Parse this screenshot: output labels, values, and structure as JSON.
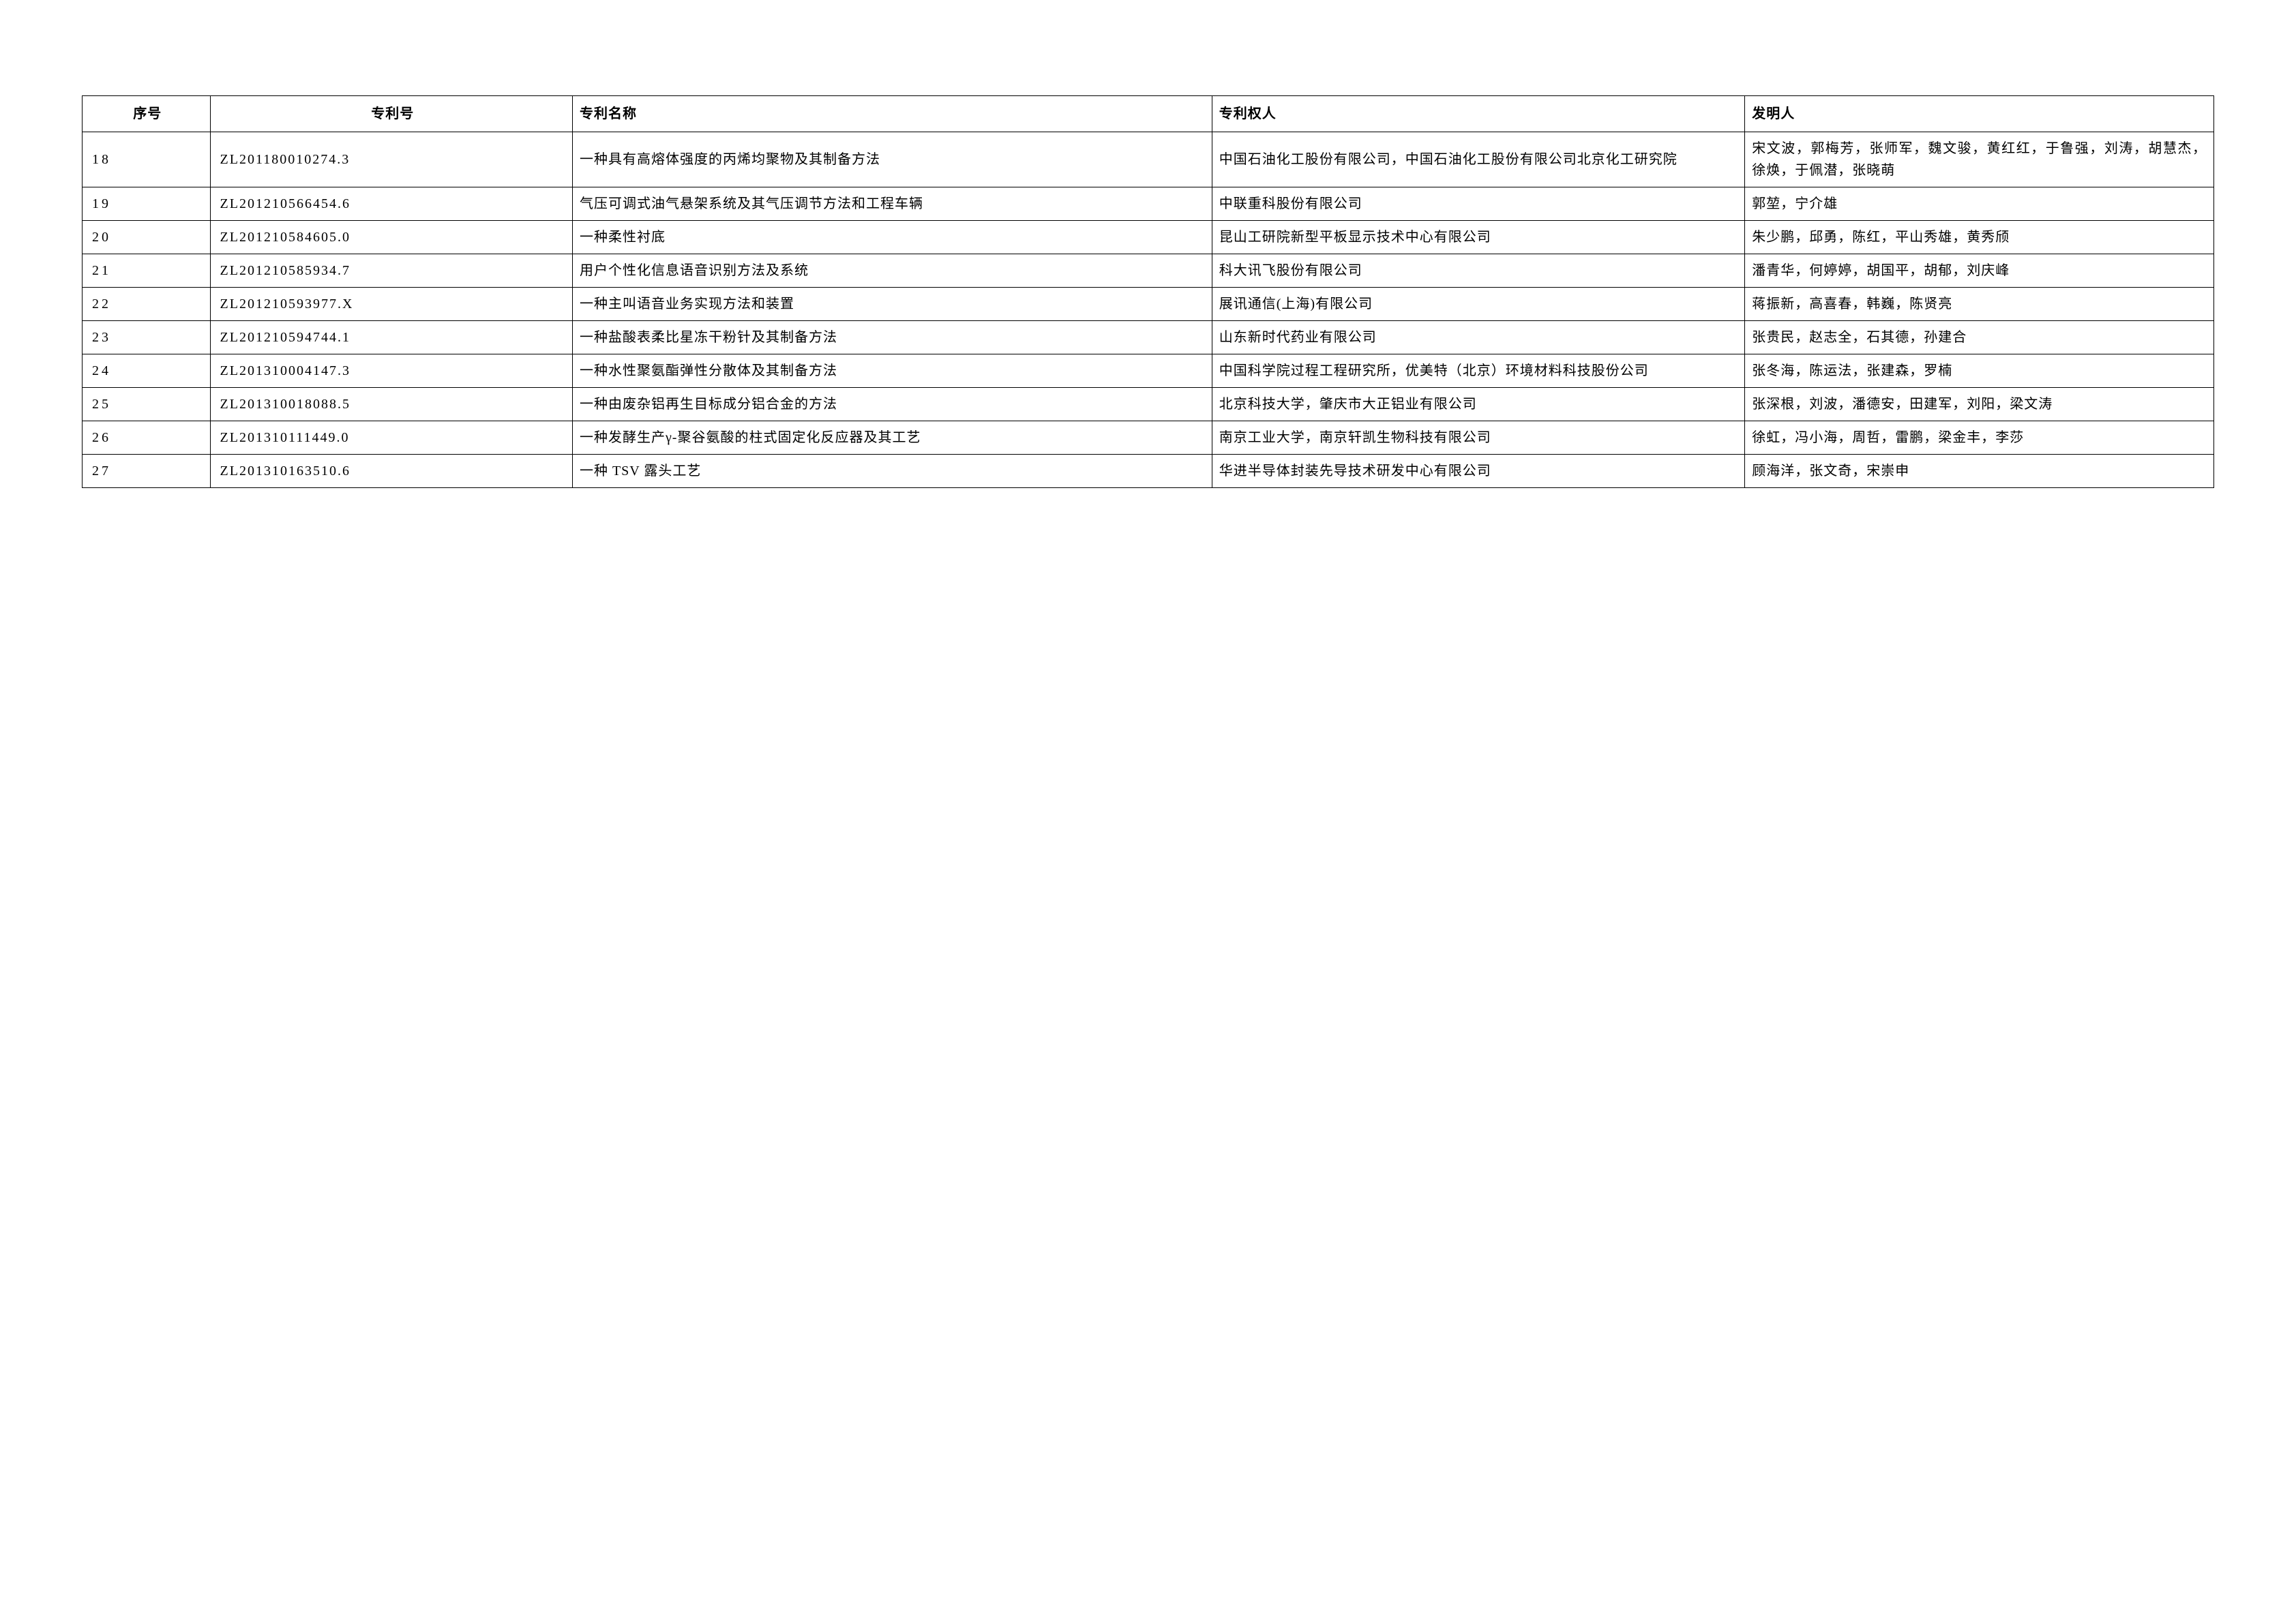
{
  "table": {
    "headers": {
      "seq": "序号",
      "patentNo": "专利号",
      "patentName": "专利名称",
      "owner": "专利权人",
      "inventor": "发明人"
    },
    "columnWidths": {
      "seq": "6%",
      "patentNo": "17%",
      "patentName": "30%",
      "owner": "25%",
      "inventor": "22%"
    },
    "borderColor": "#000000",
    "backgroundColor": "#ffffff",
    "fontSize": 20,
    "rows": [
      {
        "seq": "18",
        "patentNo": "ZL201180010274.3",
        "patentName": "一种具有高熔体强度的丙烯均聚物及其制备方法",
        "owner": "中国石油化工股份有限公司，中国石油化工股份有限公司北京化工研究院",
        "inventor": "宋文波，郭梅芳，张师军，魏文骏，黄红红，于鲁强，刘涛，胡慧杰，徐焕，于佩潜，张晓萌"
      },
      {
        "seq": "19",
        "patentNo": "ZL201210566454.6",
        "patentName": "气压可调式油气悬架系统及其气压调节方法和工程车辆",
        "owner": "中联重科股份有限公司",
        "inventor": "郭堃，宁介雄"
      },
      {
        "seq": "20",
        "patentNo": "ZL201210584605.0",
        "patentName": "一种柔性衬底",
        "owner": "昆山工研院新型平板显示技术中心有限公司",
        "inventor": "朱少鹏，邱勇，陈红，平山秀雄，黄秀颀"
      },
      {
        "seq": "21",
        "patentNo": "ZL201210585934.7",
        "patentName": "用户个性化信息语音识别方法及系统",
        "owner": "科大讯飞股份有限公司",
        "inventor": "潘青华，何婷婷，胡国平，胡郁，刘庆峰"
      },
      {
        "seq": "22",
        "patentNo": "ZL201210593977.X",
        "patentName": "一种主叫语音业务实现方法和装置",
        "owner": "展讯通信(上海)有限公司",
        "inventor": "蒋振新，高喜春，韩巍，陈贤亮"
      },
      {
        "seq": "23",
        "patentNo": "ZL201210594744.1",
        "patentName": "一种盐酸表柔比星冻干粉针及其制备方法",
        "owner": "山东新时代药业有限公司",
        "inventor": "张贵民，赵志全，石其德，孙建合"
      },
      {
        "seq": "24",
        "patentNo": "ZL201310004147.3",
        "patentName": "一种水性聚氨酯弹性分散体及其制备方法",
        "owner": "中国科学院过程工程研究所，优美特（北京）环境材料科技股份公司",
        "inventor": "张冬海，陈运法，张建森，罗楠"
      },
      {
        "seq": "25",
        "patentNo": "ZL201310018088.5",
        "patentName": "一种由废杂铝再生目标成分铝合金的方法",
        "owner": "北京科技大学，肇庆市大正铝业有限公司",
        "inventor": "张深根，刘波，潘德安，田建军，刘阳，梁文涛"
      },
      {
        "seq": "26",
        "patentNo": "ZL201310111449.0",
        "patentName": "一种发酵生产γ-聚谷氨酸的柱式固定化反应器及其工艺",
        "owner": "南京工业大学，南京轩凯生物科技有限公司",
        "inventor": "徐虹，冯小海，周哲，雷鹏，梁金丰，李莎"
      },
      {
        "seq": "27",
        "patentNo": "ZL201310163510.6",
        "patentName": "一种 TSV 露头工艺",
        "owner": "华进半导体封装先导技术研发中心有限公司",
        "inventor": "顾海洋，张文奇，宋崇申"
      }
    ]
  }
}
